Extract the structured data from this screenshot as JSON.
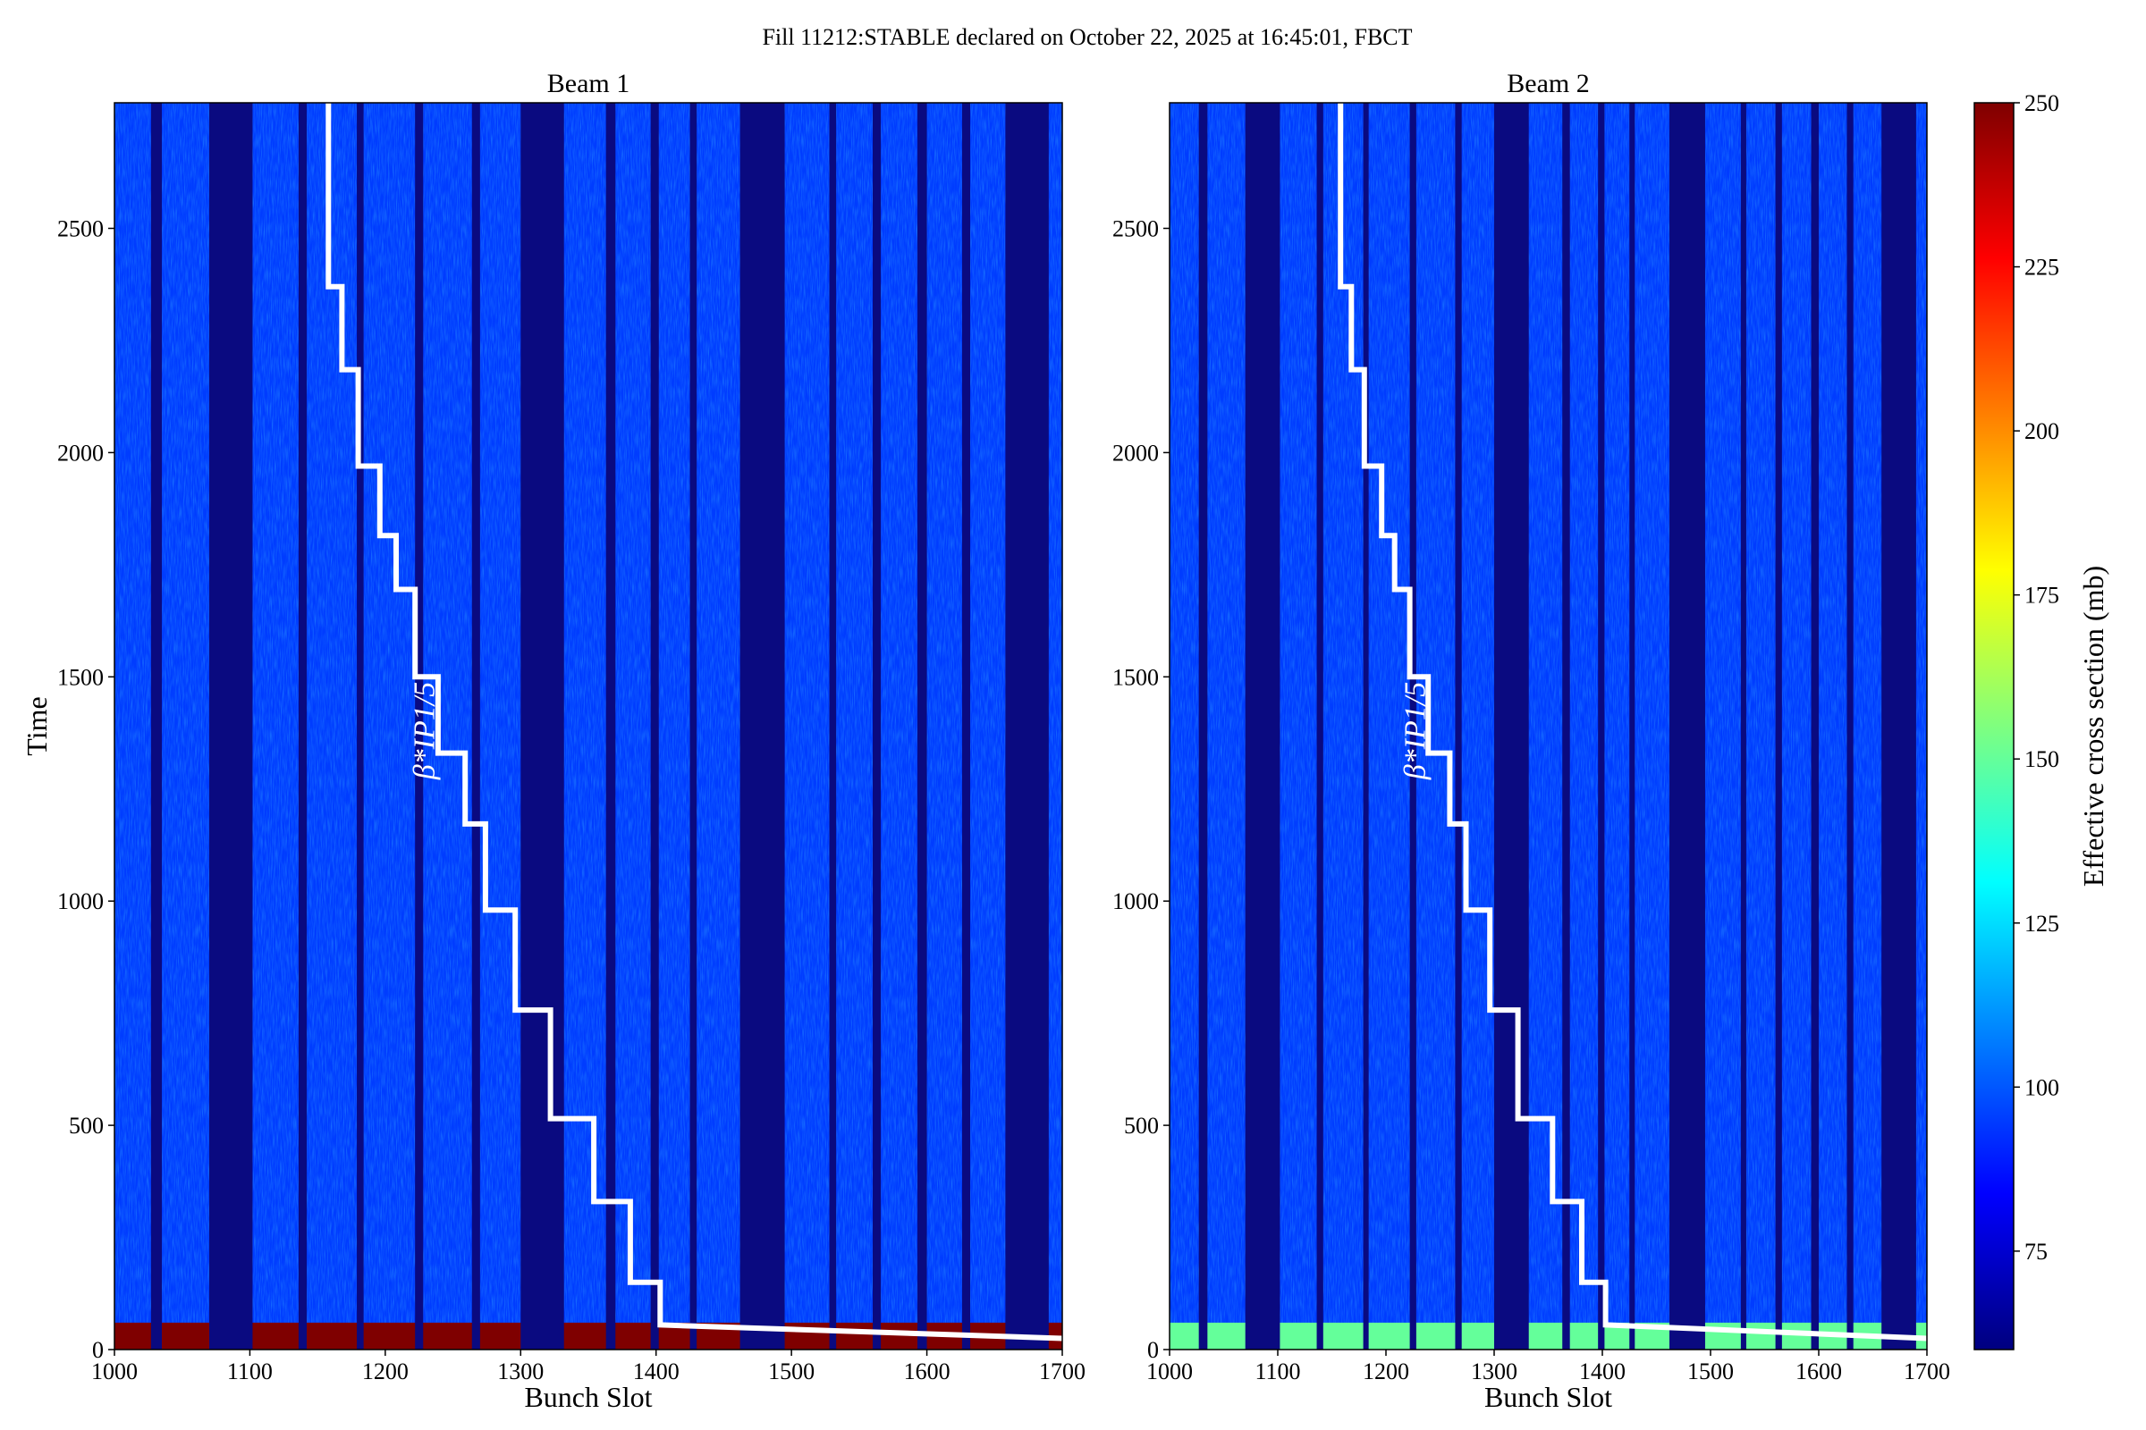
{
  "suptitle": "Fill 11212:STABLE declared on October 22, 2025 at 16:45:01, FBCT",
  "colors": {
    "background_low": "#0a0a80",
    "field_blue": "#1c3fe0",
    "cmap": [
      "#00007f",
      "#0000ff",
      "#007fff",
      "#00ffff",
      "#7fff7f",
      "#ffff00",
      "#ff7f00",
      "#ff0000",
      "#7f0000"
    ],
    "step_line": "#ffffff"
  },
  "chart_data": [
    {
      "type": "heatmap",
      "title": "Beam 1",
      "xlabel": "Bunch Slot",
      "ylabel": "Time",
      "xlim": [
        1000,
        1700
      ],
      "ylim": [
        0,
        2780
      ],
      "xticks": [
        1000,
        1100,
        1200,
        1300,
        1400,
        1500,
        1600,
        1700
      ],
      "yticks": [
        0,
        500,
        1000,
        1500,
        2000,
        2500
      ],
      "empty_slot_gaps": [
        [
          1027,
          1035
        ],
        [
          1070,
          1102
        ],
        [
          1136,
          1142
        ],
        [
          1179,
          1184
        ],
        [
          1222,
          1228
        ],
        [
          1264,
          1270
        ],
        [
          1300,
          1332
        ],
        [
          1363,
          1370
        ],
        [
          1396,
          1402
        ],
        [
          1425,
          1430
        ],
        [
          1462,
          1495
        ],
        [
          1528,
          1533
        ],
        [
          1560,
          1566
        ],
        [
          1593,
          1600
        ],
        [
          1626,
          1632
        ],
        [
          1658,
          1690
        ]
      ],
      "hot_band_time": [
        0,
        60
      ],
      "hot_band_value": 250,
      "background_value": 95,
      "step_annotation": "β*IP1/5",
      "step_line": [
        [
          1158,
          2780
        ],
        [
          1158,
          2370
        ],
        [
          1168,
          2370
        ],
        [
          1168,
          2185
        ],
        [
          1180,
          2185
        ],
        [
          1180,
          1970
        ],
        [
          1196,
          1970
        ],
        [
          1196,
          1815
        ],
        [
          1208,
          1815
        ],
        [
          1208,
          1695
        ],
        [
          1222,
          1695
        ],
        [
          1222,
          1500
        ],
        [
          1239,
          1500
        ],
        [
          1239,
          1330
        ],
        [
          1259,
          1330
        ],
        [
          1259,
          1172
        ],
        [
          1274,
          1172
        ],
        [
          1274,
          980
        ],
        [
          1296,
          980
        ],
        [
          1296,
          757
        ],
        [
          1322,
          757
        ],
        [
          1322,
          515
        ],
        [
          1354,
          515
        ],
        [
          1354,
          330
        ],
        [
          1381,
          330
        ],
        [
          1381,
          150
        ],
        [
          1403,
          150
        ],
        [
          1403,
          55
        ],
        [
          1700,
          25
        ]
      ]
    },
    {
      "type": "heatmap",
      "title": "Beam 2",
      "xlabel": "Bunch Slot",
      "ylabel": "",
      "xlim": [
        1000,
        1700
      ],
      "ylim": [
        0,
        2780
      ],
      "xticks": [
        1000,
        1100,
        1200,
        1300,
        1400,
        1500,
        1600,
        1700
      ],
      "yticks": [
        0,
        500,
        1000,
        1500,
        2000,
        2500
      ],
      "empty_slot_gaps": [
        [
          1027,
          1035
        ],
        [
          1070,
          1102
        ],
        [
          1136,
          1142
        ],
        [
          1179,
          1184
        ],
        [
          1222,
          1228
        ],
        [
          1264,
          1270
        ],
        [
          1300,
          1332
        ],
        [
          1363,
          1370
        ],
        [
          1396,
          1402
        ],
        [
          1425,
          1430
        ],
        [
          1462,
          1495
        ],
        [
          1528,
          1533
        ],
        [
          1560,
          1566
        ],
        [
          1593,
          1600
        ],
        [
          1626,
          1632
        ],
        [
          1658,
          1690
        ]
      ],
      "hot_band_time": [
        0,
        60
      ],
      "hot_band_value": 150,
      "background_value": 95,
      "step_annotation": "β*IP1/5",
      "step_line": [
        [
          1158,
          2780
        ],
        [
          1158,
          2370
        ],
        [
          1168,
          2370
        ],
        [
          1168,
          2185
        ],
        [
          1180,
          2185
        ],
        [
          1180,
          1970
        ],
        [
          1196,
          1970
        ],
        [
          1196,
          1815
        ],
        [
          1208,
          1815
        ],
        [
          1208,
          1695
        ],
        [
          1222,
          1695
        ],
        [
          1222,
          1500
        ],
        [
          1239,
          1500
        ],
        [
          1239,
          1330
        ],
        [
          1259,
          1330
        ],
        [
          1259,
          1172
        ],
        [
          1274,
          1172
        ],
        [
          1274,
          980
        ],
        [
          1296,
          980
        ],
        [
          1296,
          757
        ],
        [
          1322,
          757
        ],
        [
          1322,
          515
        ],
        [
          1354,
          515
        ],
        [
          1354,
          330
        ],
        [
          1381,
          330
        ],
        [
          1381,
          150
        ],
        [
          1403,
          150
        ],
        [
          1403,
          55
        ],
        [
          1700,
          25
        ]
      ]
    }
  ],
  "colorbar": {
    "label": "Effective cross section (mb)",
    "range": [
      60,
      250
    ],
    "ticks": [
      75,
      100,
      125,
      150,
      175,
      200,
      225,
      250
    ]
  }
}
